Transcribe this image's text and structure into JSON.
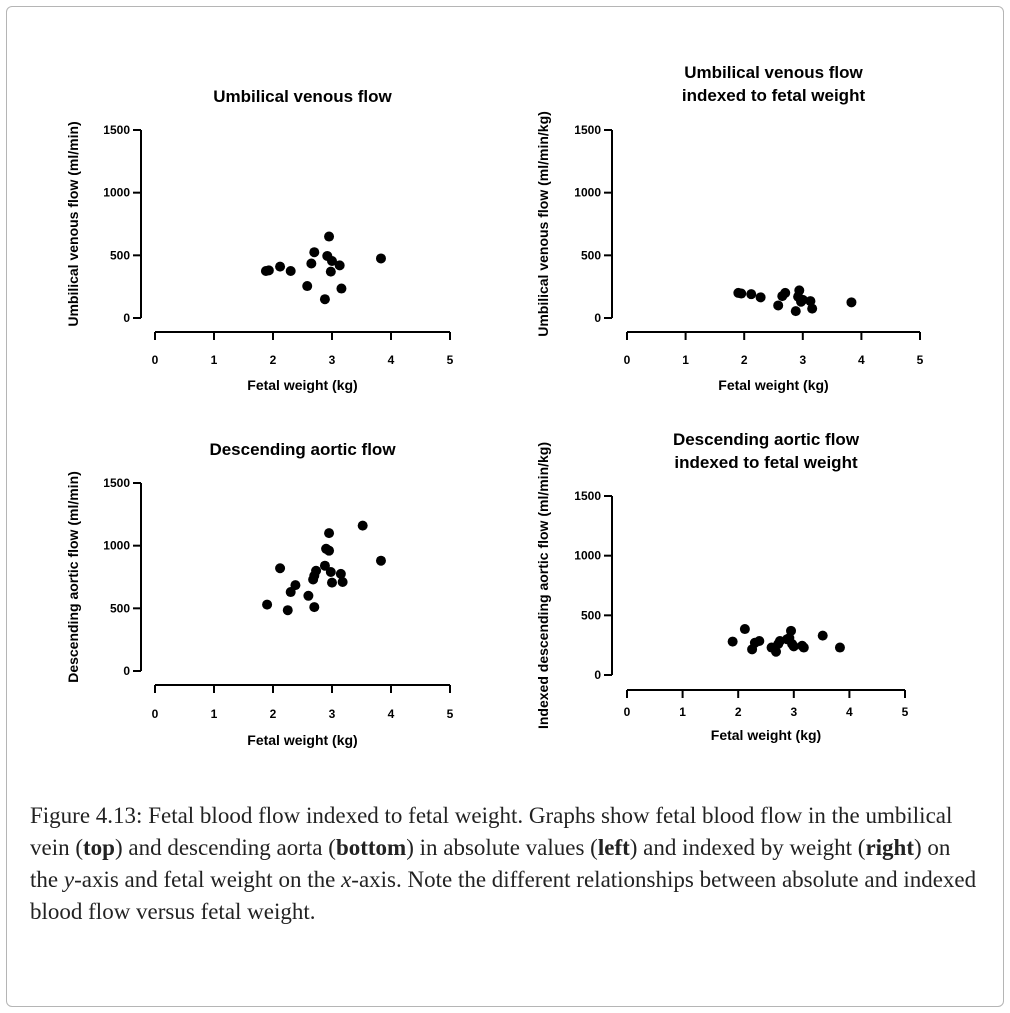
{
  "chart_data": [
    {
      "type": "scatter",
      "title_lines": [
        "Umbilical venous flow"
      ],
      "xlabel": "Fetal weight  (kg)",
      "ylabel": "Umbilical venous flow (ml/min)",
      "xlim": [
        0,
        5
      ],
      "ylim": [
        0,
        1500
      ],
      "xticks": [
        "0",
        "1",
        "2",
        "3",
        "4",
        "5"
      ],
      "yticks": [
        "0",
        "500",
        "1000",
        "1500"
      ],
      "x": [
        1.88,
        1.93,
        2.12,
        2.3,
        2.58,
        2.65,
        2.7,
        2.88,
        2.92,
        2.95,
        2.98,
        3.0,
        3.13,
        3.16,
        3.83
      ],
      "y": [
        375,
        380,
        410,
        375,
        255,
        435,
        525,
        150,
        495,
        650,
        370,
        455,
        420,
        235,
        475
      ]
    },
    {
      "type": "scatter",
      "title_lines": [
        "Umbilical venous flow",
        "indexed to fetal weight"
      ],
      "xlabel": "Fetal weight (kg)",
      "ylabel": "Umbilical venous flow (ml/min/kg)",
      "xlim": [
        0,
        5
      ],
      "ylim": [
        0,
        1500
      ],
      "xticks": [
        "0",
        "1",
        "2",
        "3",
        "4",
        "5"
      ],
      "yticks": [
        "0",
        "500",
        "1000",
        "1500"
      ],
      "x": [
        1.9,
        1.95,
        2.12,
        2.28,
        2.58,
        2.65,
        2.7,
        2.88,
        2.92,
        2.94,
        2.97,
        3.0,
        3.13,
        3.16,
        3.83
      ],
      "y": [
        200,
        195,
        190,
        165,
        100,
        175,
        200,
        55,
        170,
        220,
        130,
        145,
        135,
        75,
        125
      ]
    },
    {
      "type": "scatter",
      "title_lines": [
        "Descending aortic flow"
      ],
      "xlabel": "Fetal weight (kg)",
      "ylabel": "Descending aortic flow (ml/min)",
      "xlim": [
        0,
        5
      ],
      "ylim": [
        0,
        1500
      ],
      "xticks": [
        "0",
        "1",
        "2",
        "3",
        "4",
        "5"
      ],
      "yticks": [
        "0",
        "500",
        "1000",
        "1500"
      ],
      "x": [
        1.9,
        2.12,
        2.25,
        2.3,
        2.38,
        2.6,
        2.68,
        2.7,
        2.7,
        2.73,
        2.88,
        2.9,
        2.95,
        2.95,
        2.98,
        3.0,
        3.15,
        3.18,
        3.52,
        3.83
      ],
      "y": [
        530,
        820,
        485,
        630,
        685,
        600,
        730,
        760,
        510,
        800,
        840,
        975,
        960,
        1100,
        790,
        705,
        775,
        710,
        1160,
        880
      ]
    },
    {
      "type": "scatter",
      "title_lines": [
        "Descending aortic flow",
        "indexed to fetal weight"
      ],
      "xlabel": "Fetal weight  (kg)",
      "ylabel": "Indexed descending aortic flow (ml/min/kg)",
      "xlim": [
        0,
        5
      ],
      "ylim": [
        0,
        1500
      ],
      "xticks": [
        "0",
        "1",
        "2",
        "3",
        "4",
        "5"
      ],
      "yticks": [
        "0",
        "500",
        "1000",
        "1500"
      ],
      "x": [
        1.9,
        2.12,
        2.25,
        2.3,
        2.38,
        2.6,
        2.68,
        2.72,
        2.75,
        2.88,
        2.92,
        2.95,
        2.97,
        3.0,
        3.15,
        3.18,
        3.52,
        3.83
      ],
      "y": [
        280,
        385,
        215,
        270,
        285,
        230,
        195,
        260,
        285,
        300,
        310,
        370,
        260,
        240,
        245,
        230,
        330,
        230
      ]
    }
  ],
  "caption": {
    "p1": "Figure 4.13: Fetal blood flow indexed to fetal weight. Graphs show fetal blood flow in the umbilical vein (",
    "b1": "top",
    "p2": ") and descending aorta (",
    "b2": "bottom",
    "p3": ") in absolute values (",
    "b3": "left",
    "p4": ") and indexed by weight (",
    "b4": "right",
    "p5": ") on the ",
    "i1": "y",
    "p6": "-axis and fetal weight on the ",
    "i2": "x",
    "p7": "-axis. Note the different relationships between absolute and indexed blood flow versus fetal weight."
  }
}
